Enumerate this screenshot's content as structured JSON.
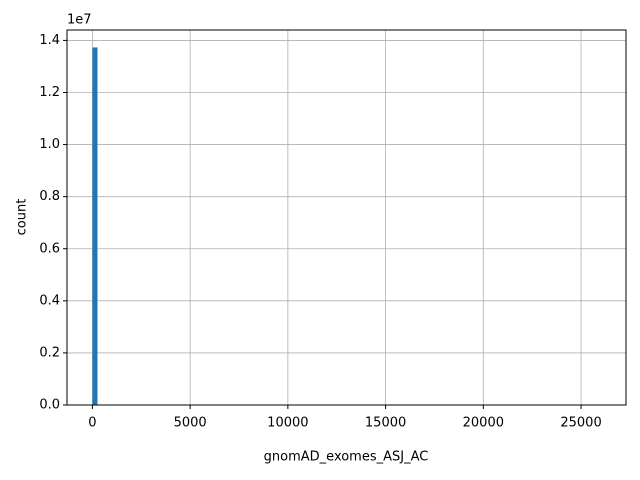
{
  "chart_data": {
    "type": "histogram",
    "x_label": "gnomAD_exomes_ASJ_AC",
    "y_label": "count",
    "y_offset_label": "1e7",
    "color": "#1f77b4",
    "grid": true,
    "bins": [
      0,
      260,
      520,
      780,
      1040,
      1300,
      1560,
      1820,
      2080,
      2340,
      2600,
      2860,
      3120,
      3380,
      3640,
      3900,
      4160,
      4420,
      4680,
      4940,
      5200,
      5460,
      5720,
      5980,
      6240,
      6500,
      6760,
      7020,
      7280,
      7540,
      7800,
      8060,
      8320,
      8580,
      8840,
      9100,
      9360,
      9620,
      9880,
      10140,
      10400,
      10660,
      10920,
      11180,
      11440,
      11700,
      11960,
      12220,
      12480,
      12740,
      13000,
      13260,
      13520,
      13780,
      14040,
      14300,
      14560,
      14820,
      15080,
      15340,
      15600,
      15860,
      16120,
      16380,
      16640,
      16900,
      17160,
      17420,
      17680,
      17940,
      18200,
      18460,
      18720,
      18980,
      19240,
      19500,
      19760,
      20020,
      20280,
      20540,
      20800,
      21060,
      21320,
      21580,
      21840,
      22100,
      22360,
      22620,
      22880,
      23140,
      23400,
      23660,
      23920,
      24180,
      24440,
      24700,
      24960,
      25220,
      25480,
      25740,
      26000
    ],
    "counts": [
      13730000,
      0,
      0,
      0,
      0,
      0,
      0,
      0,
      0,
      0,
      0,
      0,
      0,
      0,
      0,
      0,
      0,
      0,
      0,
      0,
      0,
      0,
      0,
      0,
      0,
      0,
      0,
      0,
      0,
      0,
      0,
      0,
      0,
      0,
      0,
      0,
      0,
      0,
      0,
      0,
      0,
      0,
      0,
      0,
      0,
      0,
      0,
      0,
      0,
      0,
      0,
      0,
      0,
      0,
      0,
      0,
      0,
      0,
      0,
      0,
      0,
      0,
      0,
      0,
      0,
      0,
      0,
      0,
      0,
      0,
      0,
      0,
      0,
      0,
      0,
      0,
      0,
      0,
      0,
      0,
      0,
      0,
      0,
      0,
      0,
      0,
      0,
      0,
      0,
      0,
      0,
      0,
      0,
      0,
      0,
      0,
      0,
      0,
      0,
      0
    ],
    "xlim": [
      -1300,
      27300
    ],
    "xticks": [
      0,
      5000,
      10000,
      15000,
      20000,
      25000
    ],
    "ylim": [
      0,
      14400000
    ],
    "yticks": [
      {
        "value": 0,
        "label": "0.0"
      },
      {
        "value": 2000000,
        "label": "0.2"
      },
      {
        "value": 4000000,
        "label": "0.4"
      },
      {
        "value": 6000000,
        "label": "0.6"
      },
      {
        "value": 8000000,
        "label": "0.8"
      },
      {
        "value": 10000000,
        "label": "1.0"
      },
      {
        "value": 12000000,
        "label": "1.2"
      },
      {
        "value": 14000000,
        "label": "1.4"
      }
    ]
  }
}
